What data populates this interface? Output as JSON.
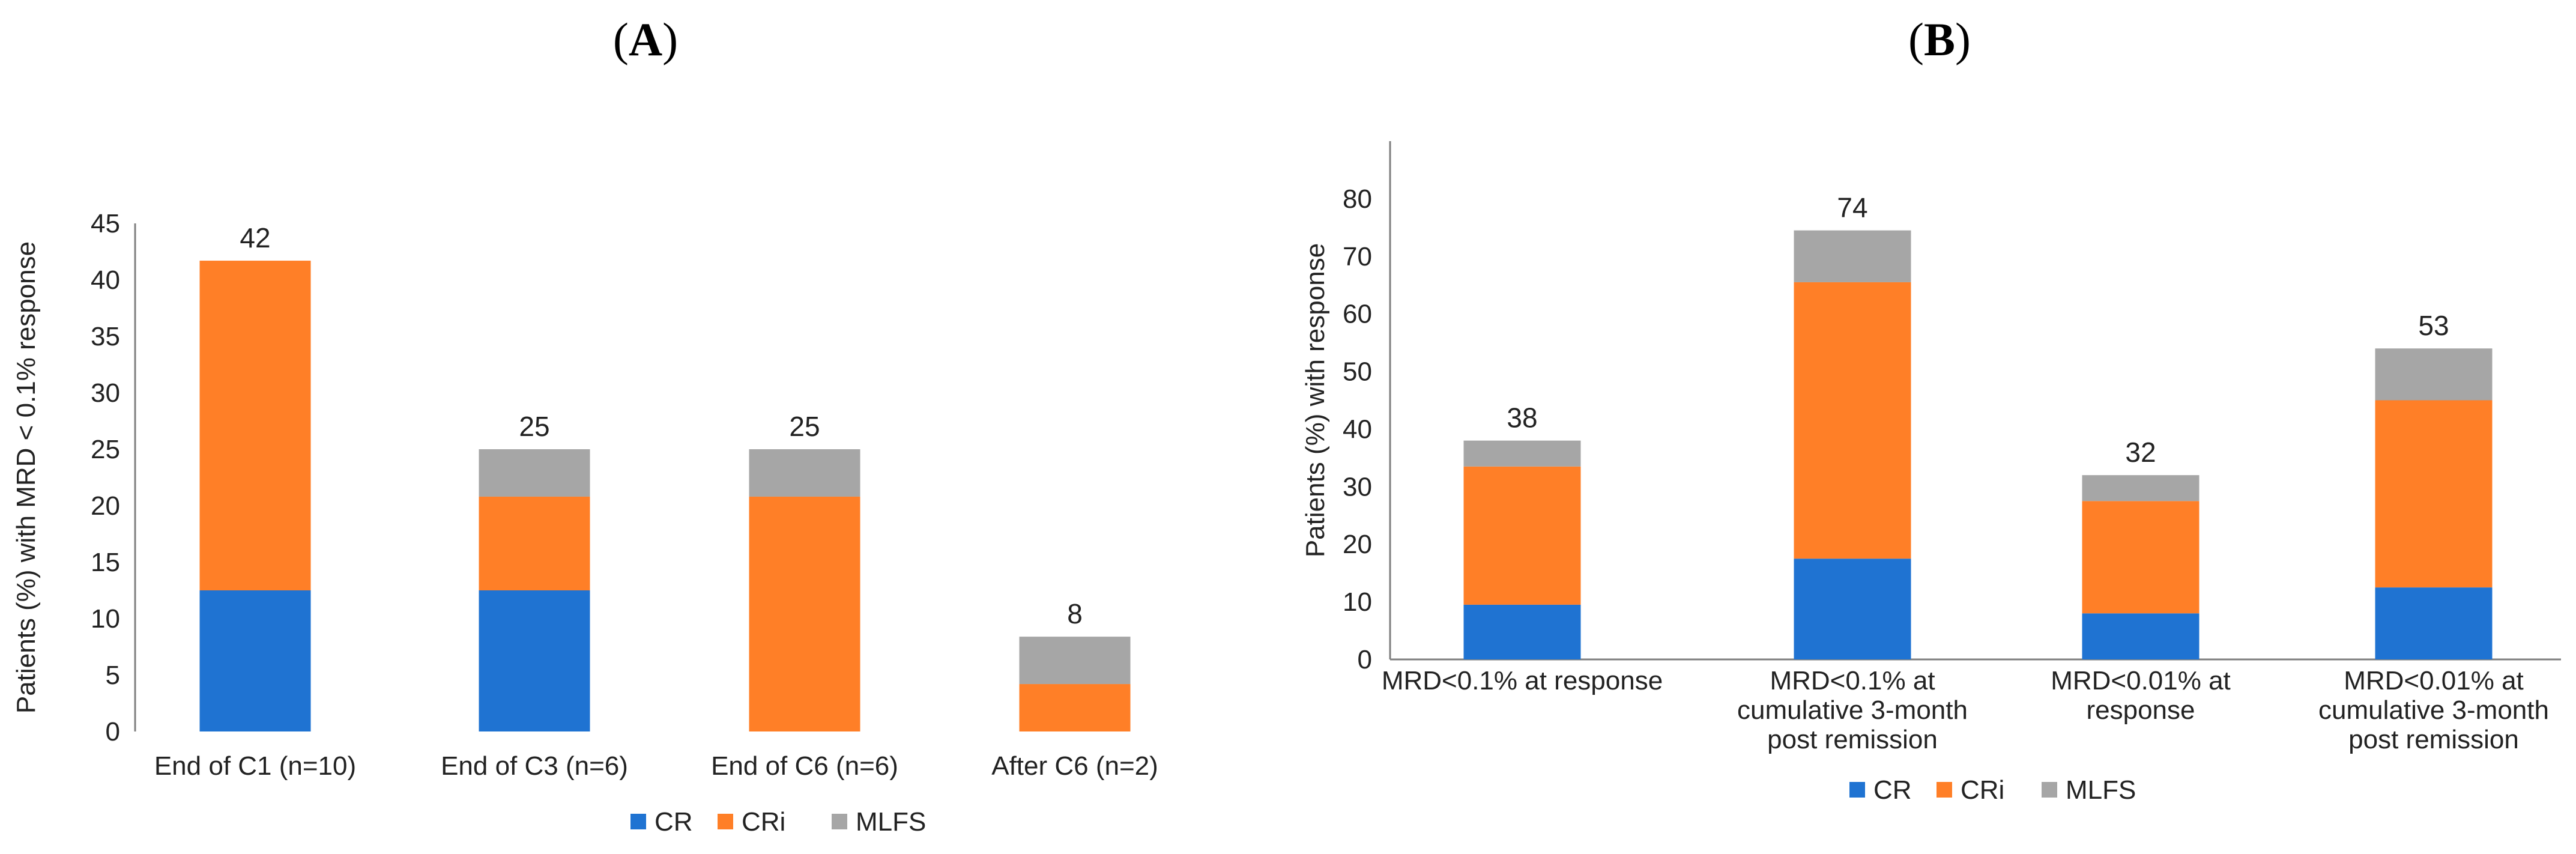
{
  "panels": [
    {
      "label": "A"
    },
    {
      "label": "B"
    }
  ],
  "chart_data": [
    {
      "type": "bar",
      "stacked": true,
      "panel": "A",
      "ylabel": "Patients (%) with MRD < 0.1% response",
      "xlabel": "",
      "ylim": [
        0,
        45
      ],
      "yticks": [
        0,
        5,
        10,
        15,
        20,
        25,
        30,
        35,
        40,
        45
      ],
      "categories": [
        [
          "End of C1 (n=10)"
        ],
        [
          "End of C3 (n=6)"
        ],
        [
          "End of C6 (n=6)"
        ],
        [
          "After C6 (n=2)"
        ]
      ],
      "series": [
        {
          "name": "CR",
          "color": "#1F73D2",
          "values": [
            12.5,
            12.5,
            0,
            0
          ]
        },
        {
          "name": "CRi",
          "color": "#FF7F27",
          "values": [
            29.2,
            8.3,
            20.8,
            4.2
          ]
        },
        {
          "name": "MLFS",
          "color": "#A6A6A6",
          "values": [
            0,
            4.2,
            4.2,
            4.2
          ]
        }
      ],
      "totals": [
        "42",
        "25",
        "25",
        "8"
      ],
      "legend": [
        "CR",
        "CRi",
        "MLFS"
      ],
      "legend_position": "bottom"
    },
    {
      "type": "bar",
      "stacked": true,
      "panel": "B",
      "ylabel": "Patients (%) with response",
      "xlabel": "",
      "ylim": [
        0,
        90
      ],
      "yticks": [
        0,
        10,
        20,
        30,
        40,
        50,
        60,
        70,
        80
      ],
      "categories": [
        [
          "MRD<0.1% at response"
        ],
        [
          "MRD<0.1% at",
          "cumulative 3-month",
          "post remission"
        ],
        [
          "MRD<0.01% at",
          "response"
        ],
        [
          "MRD<0.01% at",
          "cumulative 3-month",
          "post remission"
        ]
      ],
      "series": [
        {
          "name": "CR",
          "color": "#1F73D2",
          "values": [
            9.5,
            17.5,
            8,
            12.5
          ]
        },
        {
          "name": "CRi",
          "color": "#FF7F27",
          "values": [
            24,
            48,
            19.5,
            32.5
          ]
        },
        {
          "name": "MLFS",
          "color": "#A6A6A6",
          "values": [
            4.5,
            9,
            4.5,
            9
          ]
        }
      ],
      "totals": [
        "38",
        "74",
        "32",
        "53"
      ],
      "legend": [
        "CR",
        "CRi",
        "MLFS"
      ],
      "legend_position": "bottom"
    }
  ]
}
